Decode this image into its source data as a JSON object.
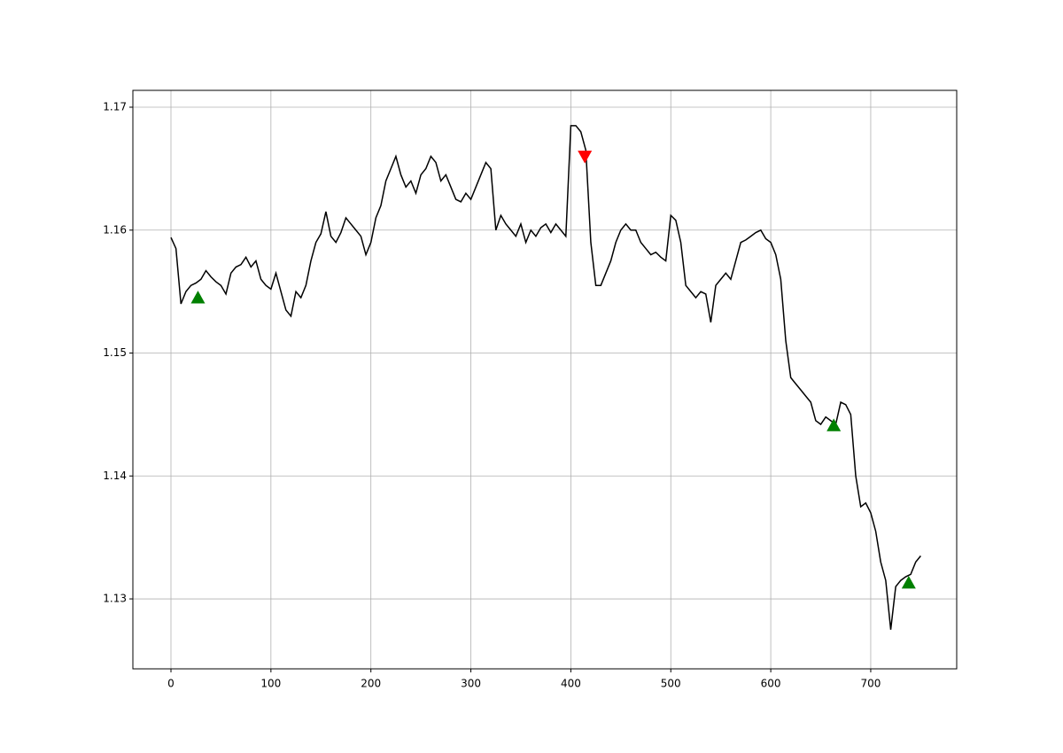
{
  "chart_data": {
    "type": "line",
    "x": [
      0,
      5,
      10,
      15,
      20,
      25,
      30,
      35,
      40,
      45,
      50,
      55,
      60,
      65,
      70,
      75,
      80,
      85,
      90,
      95,
      100,
      105,
      110,
      115,
      120,
      125,
      130,
      135,
      140,
      145,
      150,
      155,
      160,
      165,
      170,
      175,
      180,
      185,
      190,
      195,
      200,
      205,
      210,
      215,
      220,
      225,
      230,
      235,
      240,
      245,
      250,
      255,
      260,
      265,
      270,
      275,
      280,
      285,
      290,
      295,
      300,
      305,
      310,
      315,
      320,
      325,
      330,
      335,
      340,
      345,
      350,
      355,
      360,
      365,
      370,
      375,
      380,
      385,
      390,
      395,
      400,
      405,
      410,
      415,
      420,
      425,
      430,
      435,
      440,
      445,
      450,
      455,
      460,
      465,
      470,
      475,
      480,
      485,
      490,
      495,
      500,
      505,
      510,
      515,
      520,
      525,
      530,
      535,
      540,
      545,
      550,
      555,
      560,
      565,
      570,
      575,
      580,
      585,
      590,
      595,
      600,
      605,
      610,
      615,
      620,
      625,
      630,
      635,
      640,
      645,
      650,
      655,
      660,
      665,
      670,
      675,
      680,
      685,
      690,
      695,
      700,
      705,
      710,
      715,
      720,
      725,
      730,
      735,
      740,
      745,
      750
    ],
    "series": [
      {
        "color": "#000000",
        "values": [
          1.1594,
          1.1585,
          1.154,
          1.155,
          1.1555,
          1.1557,
          1.156,
          1.1567,
          1.1562,
          1.1558,
          1.1555,
          1.1548,
          1.1565,
          1.157,
          1.1572,
          1.1578,
          1.157,
          1.1575,
          1.156,
          1.1555,
          1.1552,
          1.1565,
          1.155,
          1.1535,
          1.153,
          1.155,
          1.1545,
          1.1555,
          1.1575,
          1.159,
          1.1597,
          1.1615,
          1.1595,
          1.159,
          1.1598,
          1.161,
          1.1605,
          1.16,
          1.1595,
          1.158,
          1.159,
          1.161,
          1.162,
          1.164,
          1.165,
          1.166,
          1.1645,
          1.1635,
          1.164,
          1.163,
          1.1645,
          1.165,
          1.166,
          1.1655,
          1.164,
          1.1645,
          1.1635,
          1.1625,
          1.1623,
          1.163,
          1.1625,
          1.1635,
          1.1645,
          1.1655,
          1.165,
          1.16,
          1.1612,
          1.1605,
          1.16,
          1.1595,
          1.1605,
          1.159,
          1.16,
          1.1595,
          1.1602,
          1.1605,
          1.1598,
          1.1605,
          1.16,
          1.1595,
          1.1685,
          1.1685,
          1.168,
          1.1665,
          1.159,
          1.1555,
          1.1555,
          1.1565,
          1.1575,
          1.159,
          1.16,
          1.1605,
          1.16,
          1.16,
          1.159,
          1.1585,
          1.158,
          1.1582,
          1.1578,
          1.1575,
          1.1612,
          1.1608,
          1.159,
          1.1555,
          1.155,
          1.1545,
          1.155,
          1.1548,
          1.1525,
          1.1555,
          1.156,
          1.1565,
          1.156,
          1.1575,
          1.159,
          1.1592,
          1.1595,
          1.1598,
          1.16,
          1.1593,
          1.159,
          1.158,
          1.156,
          1.151,
          1.148,
          1.1475,
          1.147,
          1.1465,
          1.146,
          1.1445,
          1.1442,
          1.1448,
          1.1445,
          1.1442,
          1.146,
          1.1458,
          1.145,
          1.14,
          1.1375,
          1.1378,
          1.137,
          1.1355,
          1.133,
          1.1315,
          1.1275,
          1.131,
          1.1315,
          1.1318,
          1.132,
          1.133,
          1.1335
        ]
      }
    ],
    "markers": [
      {
        "marker": "up",
        "color": "#008000",
        "x": [
          27,
          663,
          738
        ],
        "values": [
          1.1545,
          1.1441,
          1.1313
        ]
      },
      {
        "marker": "down",
        "color": "#ff0000",
        "x": [
          414
        ],
        "values": [
          1.166
        ]
      }
    ],
    "xlim": [
      -38.1,
      786
    ],
    "ylim": [
      1.12431,
      1.17137
    ],
    "xticks": [
      0,
      100,
      200,
      300,
      400,
      500,
      600,
      700
    ],
    "yticks": [
      1.13,
      1.14,
      1.15,
      1.16,
      1.17
    ],
    "grid": true
  }
}
